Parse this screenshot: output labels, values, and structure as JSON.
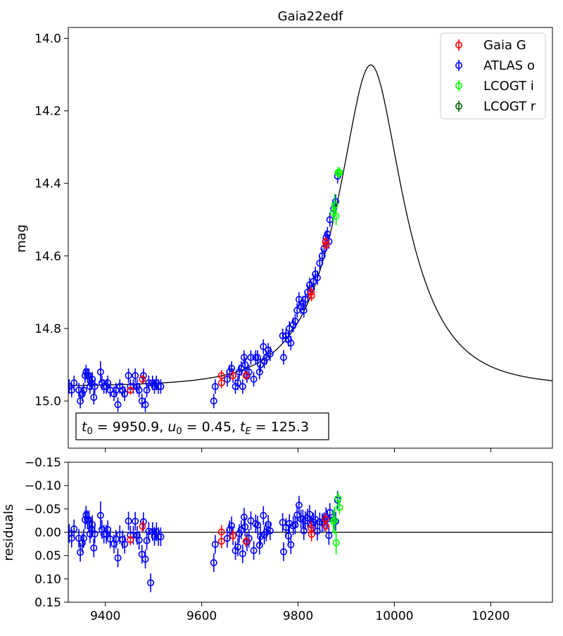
{
  "chart_data": [
    {
      "panel": "main",
      "type": "scatter",
      "title": "Gaia22edf",
      "xlabel": "",
      "ylabel": "mag",
      "xlim": [
        9323,
        10328
      ],
      "ylim": [
        15.13,
        13.97
      ],
      "y_inverted": true,
      "xticks": [],
      "yticks": [
        "14.0",
        "14.2",
        "14.4",
        "14.6",
        "14.8",
        "15.0"
      ],
      "ytick_values": [
        14.0,
        14.2,
        14.4,
        14.6,
        14.8,
        15.0
      ],
      "legend": {
        "placement": "top-right",
        "entries": [
          "Gaia G",
          "ATLAS o",
          "LCOGT i",
          "LCOGT r"
        ]
      },
      "annotation": {
        "t0": "9950.9",
        "u0": "0.45",
        "tE": "125.3",
        "placement": "bottom-left"
      },
      "model": {
        "name": "model",
        "color": "#000000",
        "t0": 9950.9,
        "u0": 0.45,
        "tE": 125.3,
        "baseline_mag": 14.96,
        "fs": 0.91
      },
      "series": [
        {
          "name": "Gaia G",
          "color": "#ff0000",
          "points": [
            [
              9452,
              14.97,
              0.012
            ],
            [
              9477,
              14.94,
              0.012
            ],
            [
              9641,
              14.93,
              0.015
            ],
            [
              9641,
              14.95,
              0.015
            ],
            [
              9665,
              14.93,
              0.013
            ],
            [
              9692,
              14.93,
              0.013
            ],
            [
              9827,
              14.7,
              0.015
            ],
            [
              9828,
              14.71,
              0.015
            ],
            [
              9857,
              14.56,
              0.013
            ],
            [
              9858,
              14.57,
              0.013
            ]
          ]
        },
        {
          "name": "ATLAS o",
          "color": "#0000ff",
          "points": [
            [
              9325,
              14.96,
              0.02
            ],
            [
              9330,
              14.97,
              0.02
            ],
            [
              9335,
              14.95,
              0.02
            ],
            [
              9345,
              14.97,
              0.02
            ],
            [
              9348,
              15.0,
              0.02
            ],
            [
              9352,
              14.98,
              0.02
            ],
            [
              9355,
              14.97,
              0.02
            ],
            [
              9358,
              14.93,
              0.02
            ],
            [
              9360,
              14.92,
              0.02
            ],
            [
              9363,
              14.93,
              0.02
            ],
            [
              9366,
              14.93,
              0.02
            ],
            [
              9368,
              14.96,
              0.02
            ],
            [
              9371,
              14.95,
              0.02
            ],
            [
              9373,
              14.94,
              0.02
            ],
            [
              9376,
              14.99,
              0.02
            ],
            [
              9378,
              14.96,
              0.02
            ],
            [
              9390,
              14.92,
              0.03
            ],
            [
              9393,
              14.95,
              0.02
            ],
            [
              9397,
              14.96,
              0.02
            ],
            [
              9402,
              14.96,
              0.02
            ],
            [
              9405,
              14.95,
              0.02
            ],
            [
              9410,
              14.97,
              0.02
            ],
            [
              9418,
              14.98,
              0.02
            ],
            [
              9422,
              14.97,
              0.02
            ],
            [
              9426,
              15.01,
              0.02
            ],
            [
              9430,
              14.96,
              0.02
            ],
            [
              9436,
              14.97,
              0.02
            ],
            [
              9440,
              14.98,
              0.02
            ],
            [
              9448,
              14.93,
              0.02
            ],
            [
              9452,
              14.96,
              0.02
            ],
            [
              9458,
              14.96,
              0.02
            ],
            [
              9462,
              14.93,
              0.02
            ],
            [
              9466,
              14.96,
              0.02
            ],
            [
              9470,
              14.97,
              0.02
            ],
            [
              9476,
              15.0,
              0.02
            ],
            [
              9479,
              14.93,
              0.02
            ],
            [
              9483,
              15.01,
              0.02
            ],
            [
              9486,
              14.97,
              0.02
            ],
            [
              9490,
              14.95,
              0.02
            ],
            [
              9494,
              15.06,
              0.02
            ],
            [
              9498,
              14.95,
              0.02
            ],
            [
              9502,
              14.96,
              0.02
            ],
            [
              9506,
              14.95,
              0.02
            ],
            [
              9510,
              14.96,
              0.02
            ],
            [
              9515,
              14.96,
              0.02
            ],
            [
              9625,
              15.0,
              0.02
            ],
            [
              9628,
              14.96,
              0.02
            ],
            [
              9653,
              14.94,
              0.02
            ],
            [
              9658,
              14.92,
              0.02
            ],
            [
              9662,
              14.91,
              0.02
            ],
            [
              9665,
              14.93,
              0.02
            ],
            [
              9670,
              14.96,
              0.02
            ],
            [
              9675,
              14.95,
              0.02
            ],
            [
              9678,
              14.92,
              0.02
            ],
            [
              9682,
              14.91,
              0.02
            ],
            [
              9685,
              14.96,
              0.02
            ],
            [
              9688,
              14.88,
              0.02
            ],
            [
              9690,
              14.9,
              0.02
            ],
            [
              9694,
              14.93,
              0.02
            ],
            [
              9698,
              14.92,
              0.02
            ],
            [
              9702,
              14.88,
              0.02
            ],
            [
              9708,
              14.94,
              0.02
            ],
            [
              9712,
              14.88,
              0.02
            ],
            [
              9716,
              14.88,
              0.02
            ],
            [
              9720,
              14.92,
              0.02
            ],
            [
              9722,
              14.9,
              0.02
            ],
            [
              9728,
              14.85,
              0.02
            ],
            [
              9730,
              14.89,
              0.02
            ],
            [
              9734,
              14.88,
              0.02
            ],
            [
              9738,
              14.86,
              0.02
            ],
            [
              9742,
              14.87,
              0.02
            ],
            [
              9768,
              14.82,
              0.02
            ],
            [
              9770,
              14.88,
              0.02
            ],
            [
              9775,
              14.82,
              0.02
            ],
            [
              9780,
              14.83,
              0.02
            ],
            [
              9782,
              14.8,
              0.02
            ],
            [
              9785,
              14.84,
              0.02
            ],
            [
              9790,
              14.79,
              0.02
            ],
            [
              9794,
              14.78,
              0.02
            ],
            [
              9798,
              14.75,
              0.02
            ],
            [
              9802,
              14.72,
              0.02
            ],
            [
              9806,
              14.74,
              0.02
            ],
            [
              9810,
              14.73,
              0.02
            ],
            [
              9812,
              14.75,
              0.02
            ],
            [
              9815,
              14.72,
              0.02
            ],
            [
              9820,
              14.7,
              0.02
            ],
            [
              9824,
              14.68,
              0.02
            ],
            [
              9828,
              14.69,
              0.02
            ],
            [
              9832,
              14.67,
              0.02
            ],
            [
              9836,
              14.65,
              0.02
            ],
            [
              9840,
              14.66,
              0.02
            ],
            [
              9845,
              14.62,
              0.02
            ],
            [
              9850,
              14.6,
              0.02
            ],
            [
              9854,
              14.58,
              0.02
            ],
            [
              9858,
              14.55,
              0.02
            ],
            [
              9861,
              14.54,
              0.02
            ],
            [
              9864,
              14.56,
              0.02
            ],
            [
              9866,
              14.5,
              0.02
            ],
            [
              9874,
              14.47,
              0.02
            ],
            [
              9878,
              14.45,
              0.02
            ],
            [
              9882,
              14.38,
              0.02
            ]
          ]
        },
        {
          "name": "LCOGT i",
          "color": "#00ff00",
          "points": [
            [
              9873,
              14.48,
              0.025
            ],
            [
              9876,
              14.46,
              0.03
            ],
            [
              9879,
              14.49,
              0.025
            ],
            [
              9883,
              14.37,
              0.015
            ],
            [
              9886,
              14.37,
              0.015
            ]
          ]
        },
        {
          "name": "LCOGT r",
          "color": "#006400",
          "points": []
        }
      ]
    },
    {
      "panel": "residuals",
      "type": "scatter",
      "xlabel": "",
      "ylabel": "residuals",
      "xlim": [
        9323,
        10328
      ],
      "ylim": [
        0.15,
        -0.15
      ],
      "y_inverted": true,
      "xticks": [
        "9400",
        "9600",
        "9800",
        "10000",
        "10200"
      ],
      "xtick_values": [
        9400,
        9600,
        9800,
        10000,
        10200
      ],
      "yticks": [
        "−0.15",
        "−0.10",
        "−0.05",
        "0.00",
        "0.05",
        "0.10",
        "0.15"
      ],
      "ytick_values": [
        -0.15,
        -0.1,
        -0.05,
        0.0,
        0.05,
        0.1,
        0.15
      ]
    }
  ]
}
